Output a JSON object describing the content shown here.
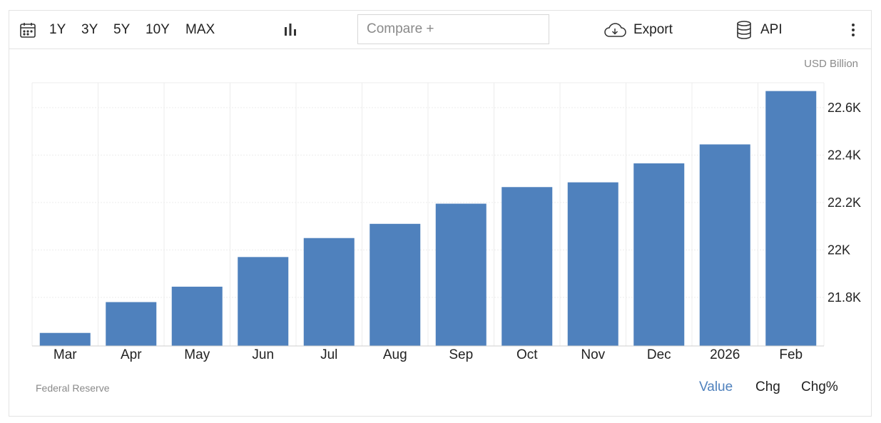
{
  "toolbar": {
    "ranges": [
      "1Y",
      "3Y",
      "5Y",
      "10Y",
      "MAX"
    ],
    "compare_placeholder": "Compare +",
    "export_label": "Export",
    "api_label": "API"
  },
  "unit_label": "USD Billion",
  "source": "Federal Reserve",
  "toggles": [
    "Value",
    "Chg",
    "Chg%"
  ],
  "active_toggle": "Value",
  "colors": {
    "bar": "#4f81bd",
    "active": "#4f81bd",
    "grid": "#ececec"
  },
  "chart_data": {
    "type": "bar",
    "categories": [
      "Mar",
      "Apr",
      "May",
      "Jun",
      "Jul",
      "Aug",
      "Sep",
      "Oct",
      "Nov",
      "Dec",
      "2026",
      "Feb"
    ],
    "values": [
      21.65,
      21.78,
      21.845,
      21.97,
      22.05,
      22.11,
      22.195,
      22.265,
      22.285,
      22.365,
      22.445,
      22.67
    ],
    "y_ticks": [
      21.8,
      22.0,
      22.2,
      22.4,
      22.6
    ],
    "y_tick_labels": [
      "21.8K",
      "22K",
      "22.2K",
      "22.4K",
      "22.6K"
    ],
    "ylim": [
      21.595,
      22.705
    ],
    "ylabel": "USD Billion",
    "y_axis_position": "right",
    "grid": true
  }
}
